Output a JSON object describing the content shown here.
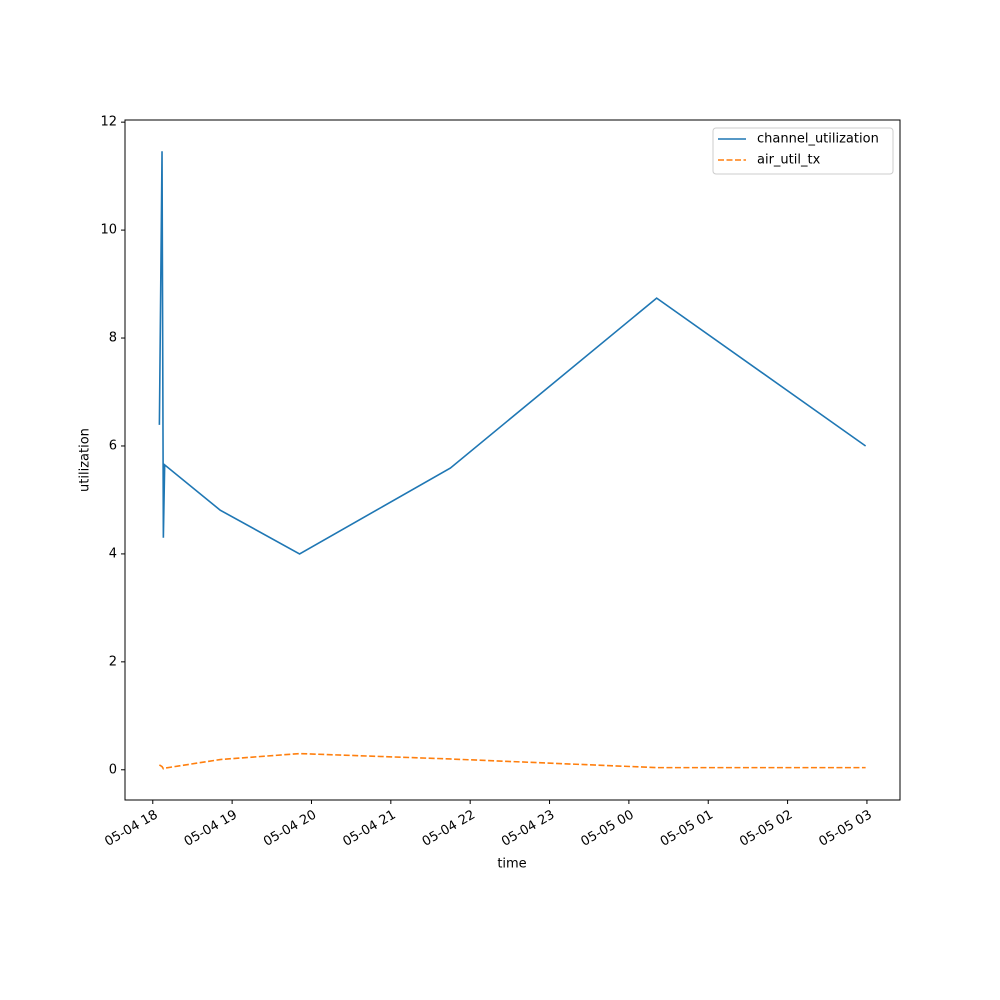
{
  "chart_data": {
    "type": "line",
    "x_label": "time",
    "y_label": "utilization",
    "x": [
      "05-04 18:05",
      "05-04 18:07",
      "05-04 18:08",
      "05-04 18:09",
      "05-04 18:51",
      "05-04 19:51",
      "05-04 21:45",
      "05-05 00:21",
      "05-05 02:59"
    ],
    "series": [
      {
        "name": "channel_utilization",
        "color": "#1f77b4",
        "dash": "solid",
        "values": [
          6.39,
          11.46,
          4.3,
          5.65,
          4.81,
          4.0,
          5.59,
          8.74,
          6.0
        ]
      },
      {
        "name": "air_util_tx",
        "color": "#ff7f0e",
        "dash": "dashed",
        "values": [
          0.09,
          0.06,
          0.02,
          0.03,
          0.19,
          0.3,
          0.2,
          0.04,
          0.04
        ]
      }
    ],
    "xlim": [
      "05-04 17:39",
      "05-05 03:25"
    ],
    "xticks": [
      "05-04 18",
      "05-04 19",
      "05-04 20",
      "05-04 21",
      "05-04 22",
      "05-04 23",
      "05-05 00",
      "05-05 01",
      "05-05 02",
      "05-05 03"
    ],
    "ylim": [
      -0.56,
      12.04
    ],
    "yticks": [
      0,
      2,
      4,
      6,
      8,
      10,
      12
    ],
    "legend": "upper right",
    "grid": false
  }
}
